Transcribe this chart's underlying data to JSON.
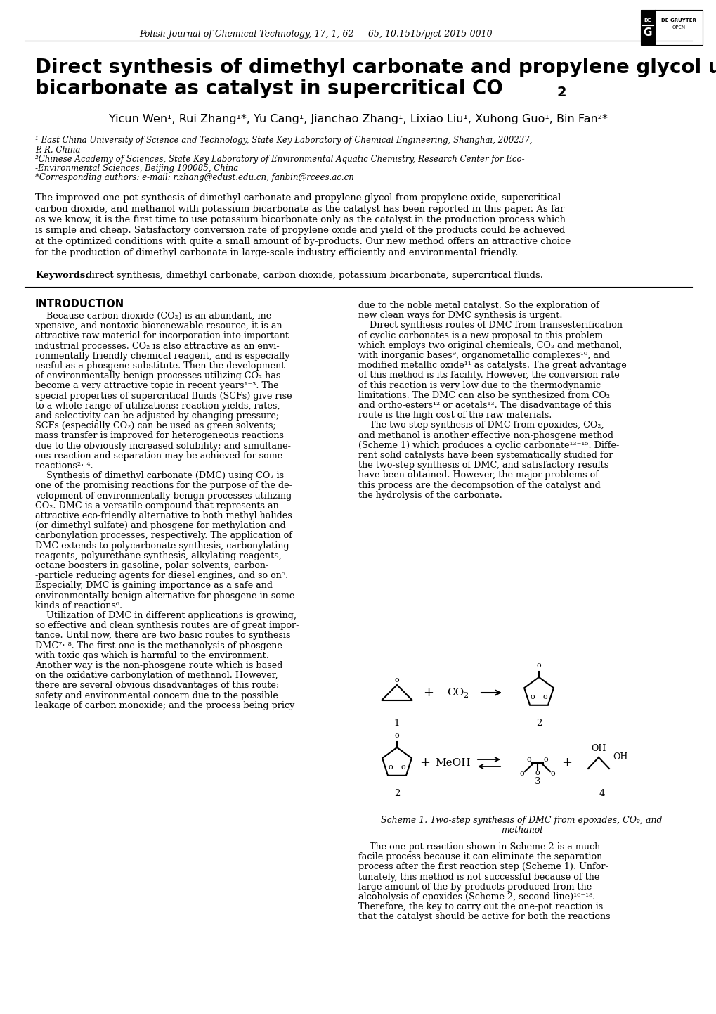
{
  "journal_line": "Polish Journal of Chemical Technology, 17, 1, 62 — 65, 10.1515/pjct-2015-0010",
  "title_line1": "Direct synthesis of dimethyl carbonate and propylene glycol using potassium",
  "title_line2": "bicarbonate as catalyst in supercritical CO",
  "title_co2_sub": "2",
  "authors": "Yicun Wen¹, Rui Zhang¹*, Yu Cang¹, Jianchao Zhang¹, Lixiao Liu¹, Xuhong Guo¹, Bin Fan²*",
  "affil1": "¹ East China University of Science and Technology, State Key Laboratory of Chemical Engineering, Shanghai, 200237,",
  "affil1b": "P. R. China",
  "affil2": "²Chinese Academy of Sciences, State Key Laboratory of Environmental Aquatic Chemistry, Research Center for Eco-",
  "affil2b": "-Environmental Sciences, Beijing 100085, China",
  "affil3": "*Corresponding authors: e-mail: r.zhang@edust.edu.cn, fanbin@rcees.ac.cn",
  "abstract": "The improved one-pot synthesis of dimethyl carbonate and propylene glycol from propylene oxide, supercritical\ncarbon dioxide, and methanol with potassium bicarbonate as the catalyst has been reported in this paper. As far\nas we know, it is the first time to use potassium bicarbonate only as the catalyst in the production process which\nis simple and cheap. Satisfactory conversion rate of propylene oxide and yield of the products could be achieved\nat the optimized conditions with quite a small amount of by-products. Our new method offers an attractive choice\nfor the production of dimethyl carbonate in large-scale industry efficiently and environmental friendly.",
  "keywords_bold": "Keywords:",
  "keywords_rest": " direct synthesis, dimethyl carbonate, carbon dioxide, potassium bicarbonate, supercritical fluids.",
  "intro_header": "INTRODUCTION",
  "intro_col1_lines": [
    "    Because carbon dioxide (CO₂) is an abundant, ine-",
    "xpensive, and nontoxic biorenewable resource, it is an",
    "attractive raw material for incorporation into important",
    "industrial processes. CO₂ is also attractive as an envi-",
    "ronmentally friendly chemical reagent, and is especially",
    "useful as a phosgene substitute. Then the development",
    "of environmentally benign processes utilizing CO₂ has",
    "become a very attractive topic in recent years¹⁻³. The",
    "special properties of supercritical fluids (SCFs) give rise",
    "to a whole range of utilizations: reaction yields, rates,",
    "and selectivity can be adjusted by changing pressure;",
    "SCFs (especially CO₂) can be used as green solvents;",
    "mass transfer is improved for heterogeneous reactions",
    "due to the obviously increased solubility; and simultane-",
    "ous reaction and separation may be achieved for some",
    "reactions²⋅ ⁴.",
    "    Synthesis of dimethyl carbonate (DMC) using CO₂ is",
    "one of the promising reactions for the purpose of the de-",
    "velopment of environmentally benign processes utilizing",
    "CO₂. DMC is a versatile compound that represents an",
    "attractive eco-friendly alternative to both methyl halides",
    "(or dimethyl sulfate) and phosgene for methylation and",
    "carbonylation processes, respectively. The application of",
    "DMC extends to polycarbonate synthesis, carbonylating",
    "reagents, polyurethane synthesis, alkylating reagents,",
    "octane boosters in gasoline, polar solvents, carbon-",
    "-particle reducing agents for diesel engines, and so on⁵.",
    "Especially, DMC is gaining importance as a safe and",
    "environmentally benign alternative for phosgene in some",
    "kinds of reactions⁶.",
    "    Utilization of DMC in different applications is growing,",
    "so effective and clean synthesis routes are of great impor-",
    "tance. Until now, there are two basic routes to synthesis",
    "DMC⁷⋅ ⁸. The first one is the methanolysis of phosgene",
    "with toxic gas which is harmful to the environment.",
    "Another way is the non-phosgene route which is based",
    "on the oxidative carbonylation of methanol. However,",
    "there are several obvious disadvantages of this route:",
    "safety and environmental concern due to the possible",
    "leakage of carbon monoxide; and the process being pricy"
  ],
  "intro_col2_lines": [
    "due to the noble metal catalyst. So the exploration of",
    "new clean ways for DMC synthesis is urgent.",
    "    Direct synthesis routes of DMC from transesterification",
    "of cyclic carbonates is a new proposal to this problem",
    "which employs two original chemicals, CO₂ and methanol,",
    "with inorganic bases⁹, organometallic complexes¹⁰, and",
    "modified metallic oxide¹¹ as catalysts. The great advantage",
    "of this method is its facility. However, the conversion rate",
    "of this reaction is very low due to the thermodynamic",
    "limitations. The DMC can also be synthesized from CO₂",
    "and ortho-esters¹² or acetals¹³. The disadvantage of this",
    "route is the high cost of the raw materials.",
    "    The two-step synthesis of DMC from epoxides, CO₂,",
    "and methanol is another effective non-phosgene method",
    "(Scheme 1) which produces a cyclic carbonate¹³⁻¹⁵. Diffe-",
    "rent solid catalysts have been systematically studied for",
    "the two-step synthesis of DMC, and satisfactory results",
    "have been obtained. However, the major problems of",
    "this process are the decompsotion of the catalyst and",
    "the hydrolysis of the carbonate."
  ],
  "scheme_para_lines": [
    "    The one-pot reaction shown in Scheme 2 is a much",
    "facile process because it can eliminate the separation",
    "process after the first reaction step (Scheme 1). Unfor-",
    "tunately, this method is not successful because of the",
    "large amount of the by-products produced from the",
    "alcoholysis of epoxides (Scheme 2, second line)¹⁶⁻¹⁸.",
    "Therefore, the key to carry out the one-pot reaction is",
    "that the catalyst should be active for both the reactions"
  ],
  "scheme_caption_line1": "Scheme 1. Two-step synthesis of DMC from epoxides, CO₂, and",
  "scheme_caption_line2": "methanol",
  "bg_color": "#ffffff"
}
